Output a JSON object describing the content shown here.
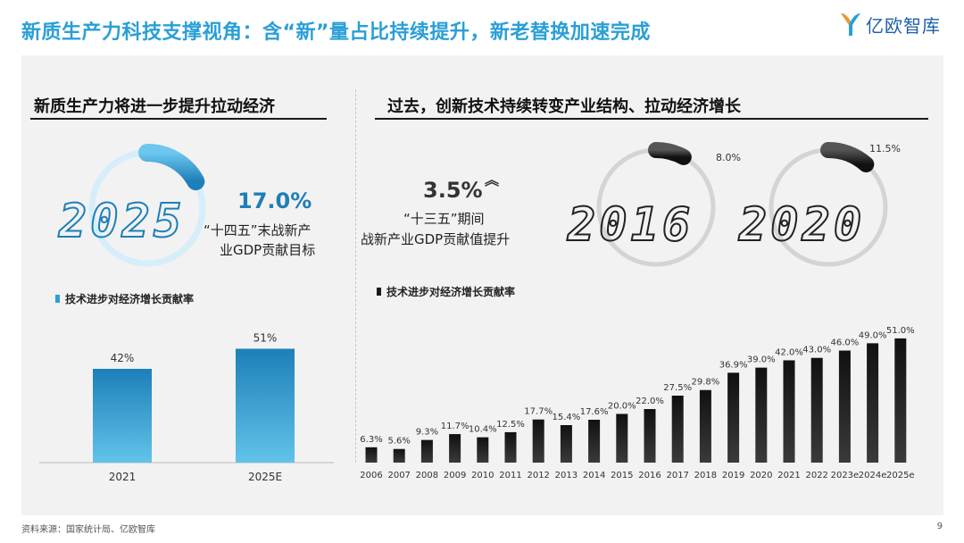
{
  "header": {
    "title": "新质生产力科技支撑视角：含“新”量占比持续提升，新老替换加速完成",
    "logo_text": "亿欧智库",
    "logo_icon": "yiou-logo-icon"
  },
  "left": {
    "section_title": "新质生产力将进一步提升拉动经济",
    "ring_year": "2025",
    "ring_value_pct": 17.0,
    "big_value": "17.0%",
    "desc_line1": "“十四五”末战新产",
    "desc_line2": "业GDP贡献目标",
    "legend": "技术进步对经济增长贡献率"
  },
  "right": {
    "section_title": "过去，创新技术持续转变产业结构、拉动经济增长",
    "increase_value": "3.5%",
    "increase_icon": "double-chevron-up-icon",
    "desc_line1": "“十三五”期间",
    "desc_line2": "战新产业GDP贡献值提升",
    "ring1": {
      "year": "2016",
      "label": "8.0%",
      "value_pct": 8.0
    },
    "ring2": {
      "year": "2020",
      "label": "11.5%",
      "value_pct": 11.5
    },
    "legend": "技术进步对经济增长贡献率"
  },
  "footer": {
    "source": "资料来源：国家统计局、亿欧智库",
    "page": "9"
  },
  "colors": {
    "title_blue": "#2a9fd6",
    "bar_blue": "#1d7fb8",
    "bar_dark": "#1a1a1a",
    "panel_bg": "#f2f2f2"
  },
  "chart_data": [
    {
      "type": "bar",
      "categories": [
        "2021",
        "2025E"
      ],
      "values": [
        42,
        51
      ],
      "labels": [
        "42%",
        "51%"
      ],
      "title": "",
      "xlabel": "",
      "ylabel": "",
      "ylim": [
        0,
        60
      ]
    },
    {
      "type": "bar",
      "categories": [
        "2006",
        "2007",
        "2008",
        "2009",
        "2010",
        "2011",
        "2012",
        "2013",
        "2014",
        "2015",
        "2016",
        "2017",
        "2018",
        "2019",
        "2020",
        "2021",
        "2022",
        "2023e",
        "2024e",
        "2025e"
      ],
      "values": [
        6.3,
        5.6,
        9.3,
        11.7,
        10.4,
        12.5,
        17.7,
        15.4,
        17.6,
        20.0,
        22.0,
        27.5,
        29.8,
        36.9,
        39.0,
        42.0,
        43.0,
        46.0,
        49.0,
        51.0
      ],
      "labels": [
        "6.3%",
        "5.6%",
        "9.3%",
        "11.7%",
        "10.4%",
        "12.5%",
        "17.7%",
        "15.4%",
        "17.6%",
        "20.0%",
        "22.0%",
        "27.5%",
        "29.8%",
        "36.9%",
        "39.0%",
        "42.0%",
        "43.0%",
        "46.0%",
        "49.0%",
        "51.0%"
      ],
      "title": "",
      "xlabel": "",
      "ylabel": "",
      "ylim": [
        0,
        55
      ]
    }
  ]
}
